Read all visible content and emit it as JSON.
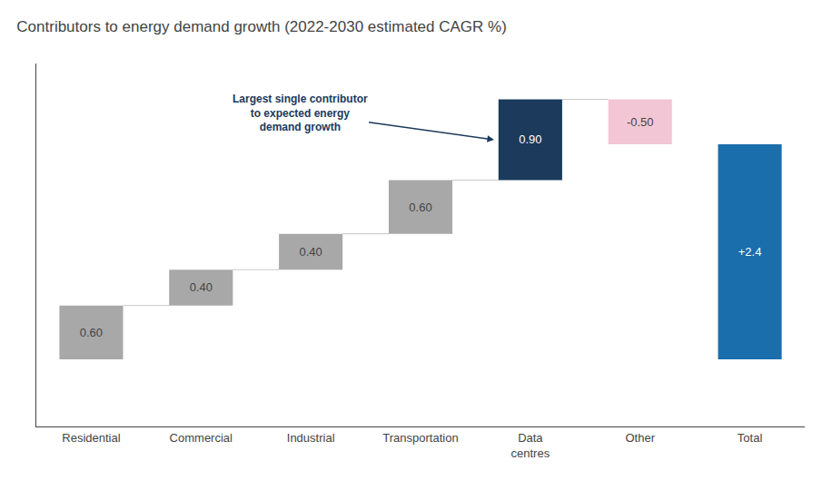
{
  "chart_data": {
    "type": "waterfall",
    "title": "Contributors to energy demand growth (2022-2030 estimated CAGR %)",
    "categories": [
      "Residential",
      "Commercial",
      "Industrial",
      "Transportation",
      "Data\ncentres",
      "Other",
      "Total"
    ],
    "values": [
      0.6,
      0.4,
      0.4,
      0.6,
      0.9,
      -0.5,
      2.4
    ],
    "value_labels": [
      "0.60",
      "0.40",
      "0.40",
      "0.60",
      "0.90",
      "-0.50",
      "+2.4"
    ],
    "data_labels": true,
    "colors": [
      "#a8a8a8",
      "#a8a8a8",
      "#a8a8a8",
      "#a8a8a8",
      "#1b3a5c",
      "#f2c6d4",
      "#1a6eac"
    ],
    "annotations": [
      "Largest single contributor\nto expected energy\ndemand growth"
    ],
    "ylim": [
      -0.75,
      3.3
    ],
    "yticks": [],
    "grid": false,
    "tick_labels": "x"
  }
}
